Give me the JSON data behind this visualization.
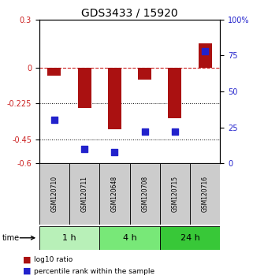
{
  "title": "GDS3433 / 15920",
  "samples": [
    "GSM120710",
    "GSM120711",
    "GSM120648",
    "GSM120708",
    "GSM120715",
    "GSM120716"
  ],
  "log10_ratio": [
    -0.05,
    -0.255,
    -0.385,
    -0.075,
    -0.32,
    0.15
  ],
  "percentile_rank": [
    30,
    10,
    8,
    22,
    22,
    78
  ],
  "groups": [
    {
      "label": "1 h",
      "indices": [
        0,
        1
      ],
      "color": "#b8f0b8"
    },
    {
      "label": "4 h",
      "indices": [
        2,
        3
      ],
      "color": "#78e878"
    },
    {
      "label": "24 h",
      "indices": [
        4,
        5
      ],
      "color": "#38c838"
    }
  ],
  "ylim_left": [
    -0.6,
    0.3
  ],
  "ylim_right": [
    0,
    100
  ],
  "yticks_left": [
    0.3,
    0,
    -0.225,
    -0.45,
    -0.6
  ],
  "ytick_left_labels": [
    "0.3",
    "0",
    "-0.225",
    "-0.45",
    "-0.6"
  ],
  "yticks_right": [
    100,
    75,
    50,
    25,
    0
  ],
  "ytick_right_labels": [
    "100%",
    "75",
    "50",
    "25",
    "0"
  ],
  "bar_color": "#aa1111",
  "dot_color": "#2222cc",
  "bar_width": 0.45,
  "dot_size": 28,
  "title_fontsize": 10,
  "tick_fontsize": 7,
  "label_color_left": "#cc2222",
  "label_color_right": "#2222cc",
  "sample_box_color": "#cccccc",
  "legend_red_label": "log10 ratio",
  "legend_blue_label": "percentile rank within the sample",
  "time_label": "time"
}
